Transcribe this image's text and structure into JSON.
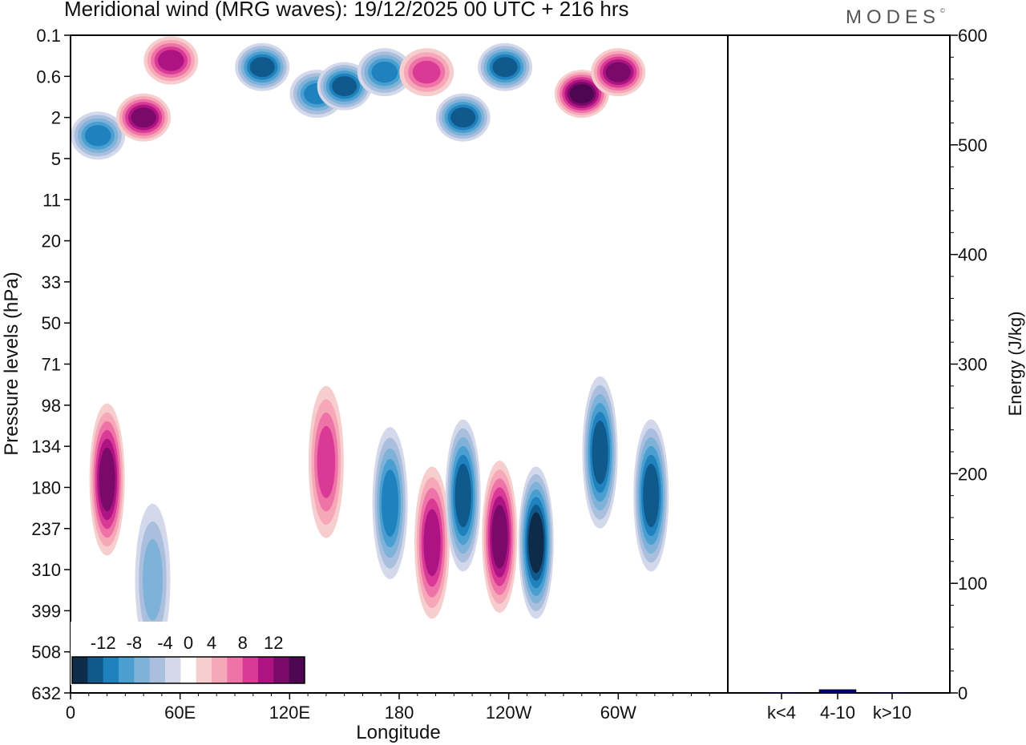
{
  "title": "Meridional wind (MRG waves):  19/12/2025  00 UTC  + 216 hrs",
  "brand": "MODES",
  "brand_mark": "©",
  "chart_data": [
    {
      "type": "heatmap",
      "title": "Meridional wind (MRG waves)",
      "xlabel": "Longitude",
      "ylabel": "Pressure levels (hPa)",
      "x_ticks": [
        "0",
        "60E",
        "120E",
        "180",
        "120W",
        "60W"
      ],
      "y_ticks": [
        "0.1",
        "0.6",
        "2",
        "5",
        "11",
        "20",
        "33",
        "50",
        "71",
        "98",
        "134",
        "180",
        "237",
        "310",
        "399",
        "508",
        "632"
      ],
      "colorbar_labels": [
        "-12",
        "-8",
        "-4",
        "0",
        "4",
        "8",
        "12"
      ],
      "colorbar_levels": [
        -14,
        -12,
        -10,
        -8,
        -6,
        -4,
        -2,
        2,
        4,
        6,
        8,
        10,
        12,
        14
      ],
      "colorbar_colors": [
        "#0d2c4a",
        "#10598c",
        "#1f82be",
        "#4a9fd0",
        "#7fb2d8",
        "#aabfdd",
        "#d3d8ea",
        "#ffffff",
        "#f7cece",
        "#f7a8b8",
        "#ee74a8",
        "#d93a96",
        "#ad1382",
        "#7a0a6a",
        "#4e0652"
      ],
      "features": [
        {
          "lon": 15,
          "lev": 3,
          "sign": -1,
          "amp": 11
        },
        {
          "lon": 40,
          "lev": 2,
          "sign": 1,
          "amp": 13
        },
        {
          "lon": 105,
          "lev": 0.4,
          "sign": -1,
          "amp": 13
        },
        {
          "lon": 55,
          "lev": 0.3,
          "sign": 1,
          "amp": 11
        },
        {
          "lon": 135,
          "lev": 1,
          "sign": -1,
          "amp": 10
        },
        {
          "lon": 150,
          "lev": 0.8,
          "sign": -1,
          "amp": 12
        },
        {
          "lon": 172,
          "lev": 0.5,
          "sign": -1,
          "amp": 11
        },
        {
          "lon": 195,
          "lev": 0.5,
          "sign": 1,
          "amp": 9
        },
        {
          "lon": 215,
          "lev": 2,
          "sign": -1,
          "amp": 12
        },
        {
          "lon": 238,
          "lev": 0.4,
          "sign": -1,
          "amp": 13
        },
        {
          "lon": 280,
          "lev": 1,
          "sign": 1,
          "amp": 14
        },
        {
          "lon": 300,
          "lev": 0.5,
          "sign": 1,
          "amp": 13
        },
        {
          "lon": 20,
          "lev": 170,
          "sign": 1,
          "amp": 13
        },
        {
          "lon": 45,
          "lev": 330,
          "sign": -1,
          "amp": 7
        },
        {
          "lon": 140,
          "lev": 150,
          "sign": 1,
          "amp": 9
        },
        {
          "lon": 175,
          "lev": 200,
          "sign": -1,
          "amp": 10
        },
        {
          "lon": 198,
          "lev": 260,
          "sign": 1,
          "amp": 11
        },
        {
          "lon": 215,
          "lev": 190,
          "sign": -1,
          "amp": 13
        },
        {
          "lon": 235,
          "lev": 250,
          "sign": 1,
          "amp": 13
        },
        {
          "lon": 255,
          "lev": 260,
          "sign": -1,
          "amp": 14
        },
        {
          "lon": 290,
          "lev": 140,
          "sign": -1,
          "amp": 13
        },
        {
          "lon": 318,
          "lev": 190,
          "sign": -1,
          "amp": 12
        }
      ]
    },
    {
      "type": "bar",
      "title": "",
      "ylabel": "Energy (J/kg)",
      "categories": [
        "k<4",
        "4-10",
        "k>10"
      ],
      "values": [
        0.5,
        3,
        0.5
      ],
      "colors": [
        "#000080",
        "#000080",
        "#000080"
      ],
      "ylim": [
        0,
        600
      ],
      "y_ticks": [
        "0",
        "100",
        "200",
        "300",
        "400",
        "500",
        "600"
      ]
    }
  ]
}
